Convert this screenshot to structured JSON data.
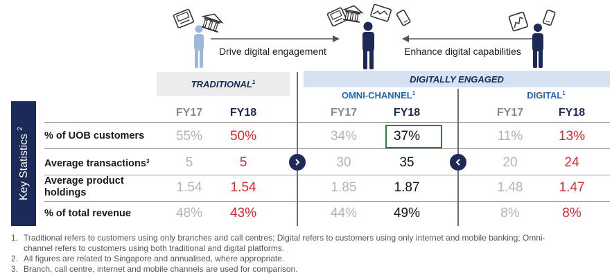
{
  "captions": {
    "drive": "Drive digital engagement",
    "enhance": "Enhance digital capabilities"
  },
  "headers": {
    "traditional": "TRADITIONAL",
    "traditional_sup": "1",
    "digitally_engaged": "DIGITALLY ENGAGED",
    "omni_channel": "OMNI-CHANNEL",
    "omni_sup": "1",
    "digital": "DIGITAL",
    "digital_sup": "1"
  },
  "key_statistics": {
    "label": "Key Statistics",
    "sup": "2"
  },
  "columns": {
    "fy17": "FY17",
    "fy18": "FY18"
  },
  "rows": [
    {
      "label": "% of UOB customers",
      "sup": "",
      "trad_fy17": "55%",
      "trad_fy18": "50%",
      "omni_fy17": "34%",
      "omni_fy18": "37%",
      "dig_fy17": "11%",
      "dig_fy18": "13%"
    },
    {
      "label": "Average transactions",
      "sup": "3",
      "trad_fy17": "5",
      "trad_fy18": "5",
      "omni_fy17": "30",
      "omni_fy18": "35",
      "dig_fy17": "20",
      "dig_fy18": "24"
    },
    {
      "label": "Average product holdings",
      "label_line1": "Average product",
      "label_line2": "holdings",
      "sup": "",
      "trad_fy17": "1.54",
      "trad_fy18": "1.54",
      "omni_fy17": "1.85",
      "omni_fy18": "1.87",
      "dig_fy17": "1.48",
      "dig_fy18": "1.47"
    },
    {
      "label": "% of total revenue",
      "sup": "",
      "trad_fy17": "48%",
      "trad_fy18": "43%",
      "omni_fy17": "44%",
      "omni_fy18": "49%",
      "dig_fy17": "8%",
      "dig_fy18": "8%"
    }
  ],
  "footnotes": [
    {
      "num": "1.",
      "text": "Traditional refers to customers using only branches and call centres; Digital refers to customers using only internet and mobile banking; Omni-"
    },
    {
      "num": "",
      "text": "channel refers to customers using both traditional and digital platforms."
    },
    {
      "num": "2.",
      "text": "All figures are related to Singapore and annualised, where appropriate."
    },
    {
      "num": "3.",
      "text": "Branch, call centre, internet and mobile channels are used for comparison."
    }
  ],
  "colors": {
    "navy": "#1b2a57",
    "blue_sub": "#1f67b3",
    "red": "#d9282f",
    "grey_value": "#b3b3b3",
    "highlight_green": "#2e7d3b",
    "person_light": "#9db8da"
  },
  "icons": [
    "atm-icon",
    "bank-icon",
    "chart-tablet-icon",
    "mobile-phone-icon",
    "person-icon",
    "arrow-right-icon",
    "arrow-left-icon",
    "chevron-right-icon",
    "chevron-left-icon",
    "up-arrow-icon"
  ]
}
